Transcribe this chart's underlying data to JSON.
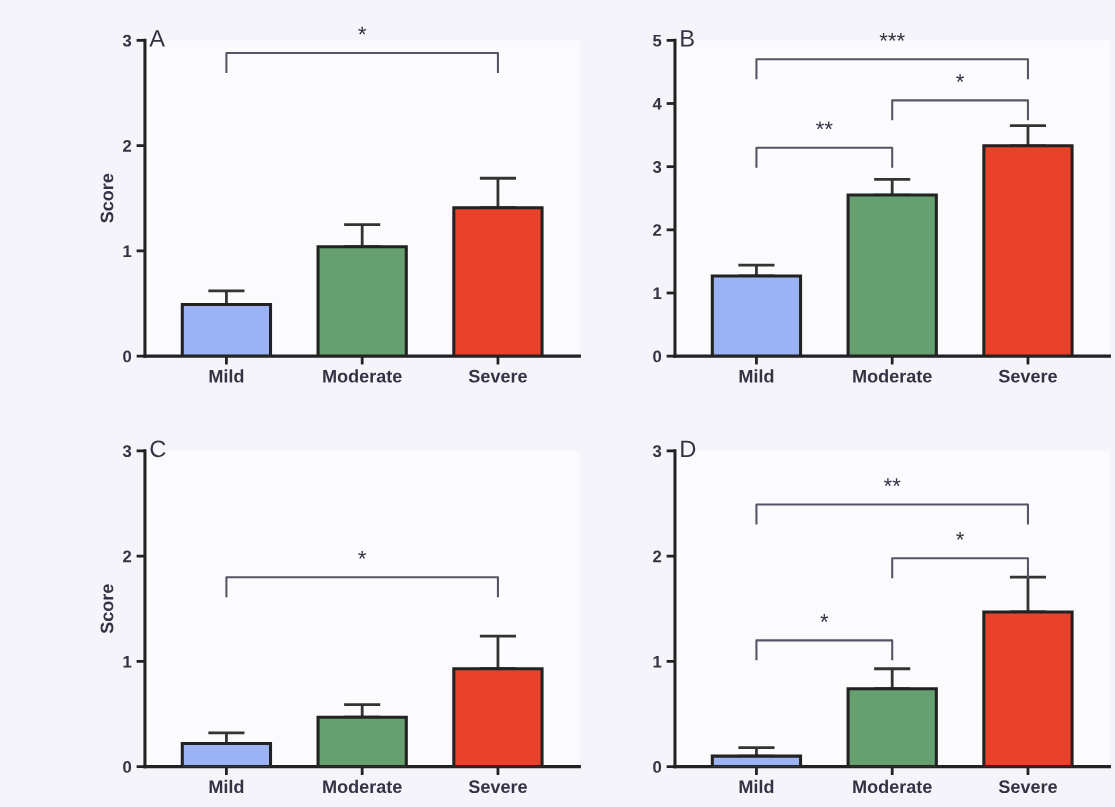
{
  "chart_data": [
    {
      "type": "bar",
      "title": "A",
      "ylabel": "Score",
      "categories": [
        "Mild",
        "Moderate",
        "Severe"
      ],
      "values": [
        0.49,
        1.04,
        1.41
      ],
      "errors": [
        0.13,
        0.21,
        0.28
      ],
      "colors": [
        "#9bb3f5",
        "#66a070",
        "#e8432a"
      ],
      "ylim": [
        0,
        3
      ],
      "yticks": [
        0,
        1,
        2,
        3
      ],
      "grid": false,
      "legend": false,
      "annotations": [
        "*"
      ]
    },
    {
      "type": "bar",
      "title": "B",
      "categories": [
        "Mild",
        "Moderate",
        "Severe"
      ],
      "values": [
        1.27,
        2.55,
        3.33
      ],
      "errors": [
        0.17,
        0.25,
        0.32
      ],
      "colors": [
        "#9bb3f5",
        "#66a070",
        "#e8432a"
      ],
      "ylim": [
        0,
        5
      ],
      "yticks": [
        0,
        1,
        2,
        3,
        4,
        5
      ],
      "grid": false,
      "legend": false,
      "annotations": [
        "***",
        "*",
        "**"
      ]
    },
    {
      "type": "bar",
      "title": "C",
      "ylabel": "Score",
      "categories": [
        "Mild",
        "Moderate",
        "Severe"
      ],
      "values": [
        0.22,
        0.47,
        0.93
      ],
      "errors": [
        0.1,
        0.12,
        0.31
      ],
      "colors": [
        "#9bb3f5",
        "#66a070",
        "#e8432a"
      ],
      "ylim": [
        0,
        3
      ],
      "yticks": [
        0,
        1,
        2,
        3
      ],
      "grid": false,
      "legend": false,
      "annotations": [
        "*"
      ]
    },
    {
      "type": "bar",
      "title": "D",
      "categories": [
        "Mild",
        "Moderate",
        "Severe"
      ],
      "values": [
        0.1,
        0.74,
        1.47
      ],
      "errors": [
        0.08,
        0.19,
        0.33
      ],
      "colors": [
        "#9bb3f5",
        "#66a070",
        "#e8432a"
      ],
      "ylim": [
        0,
        3
      ],
      "yticks": [
        0,
        1,
        2,
        3
      ],
      "grid": false,
      "legend": false,
      "annotations": [
        "**",
        "*",
        "*"
      ]
    }
  ]
}
